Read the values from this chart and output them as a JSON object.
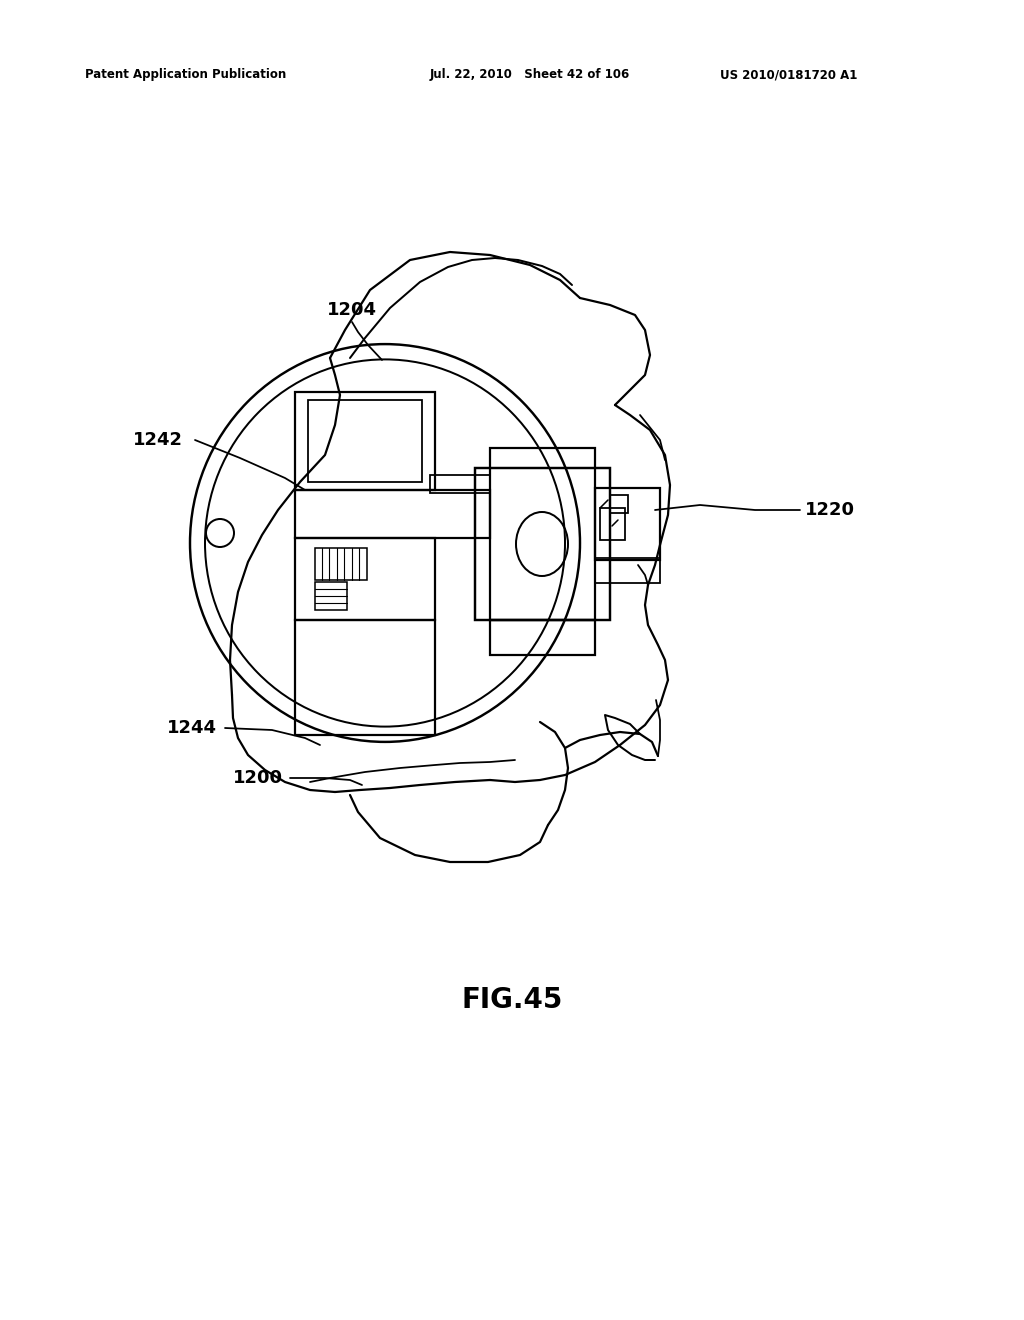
{
  "bg_color": "#ffffff",
  "line_color": "#000000",
  "header_left": "Patent Application Publication",
  "header_mid": "Jul. 22, 2010   Sheet 42 of 106",
  "header_right": "US 2010/0181720 A1",
  "fig_label": "FIG.45",
  "lw": 1.6
}
